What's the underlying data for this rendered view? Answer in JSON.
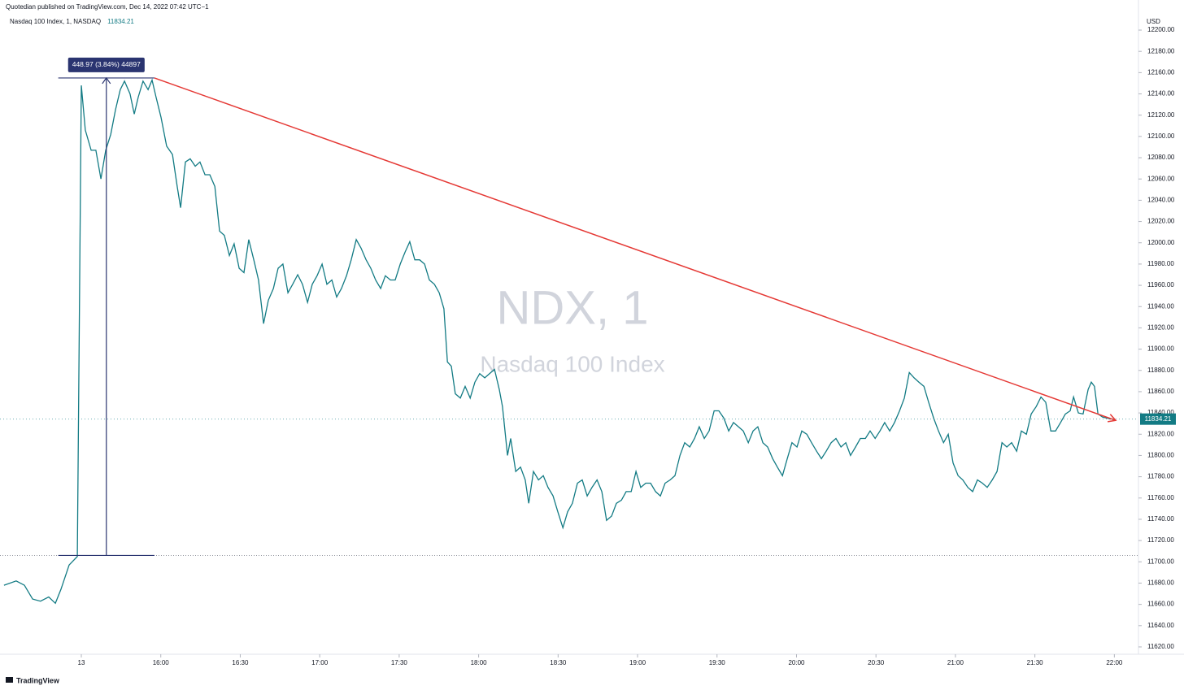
{
  "chart_data": {
    "type": "line",
    "title": "Quotedian published on TradingView.com, Dec 14, 2022 07:42 UTC−1",
    "watermark": [
      "NDX, 1",
      "Nasdaq 100 Index"
    ],
    "y_axis_label": "USD",
    "footer": "TradingView",
    "last_price": 11834.21,
    "xlim": [
      899.3,
      1329.1
    ],
    "ylim": [
      11613.1,
      12228.3
    ],
    "xticks": [
      {
        "value": 930,
        "label": "13"
      },
      {
        "value": 960,
        "label": "16:00"
      },
      {
        "value": 990,
        "label": "16:30"
      },
      {
        "value": 1020,
        "label": "17:00"
      },
      {
        "value": 1050,
        "label": "17:30"
      },
      {
        "value": 1080,
        "label": "18:00"
      },
      {
        "value": 1110,
        "label": "18:30"
      },
      {
        "value": 1140,
        "label": "19:00"
      },
      {
        "value": 1170,
        "label": "19:30"
      },
      {
        "value": 1200,
        "label": "20:00"
      },
      {
        "value": 1230,
        "label": "20:30"
      },
      {
        "value": 1260,
        "label": "21:00"
      },
      {
        "value": 1290,
        "label": "21:30"
      },
      {
        "value": 1320,
        "label": "22:00"
      }
    ],
    "yticks": [
      {
        "value": 11620,
        "label": "11620.00"
      },
      {
        "value": 11640,
        "label": "11640.00"
      },
      {
        "value": 11660,
        "label": "11660.00"
      },
      {
        "value": 11680,
        "label": "11680.00"
      },
      {
        "value": 11700,
        "label": "11700.00"
      },
      {
        "value": 11720,
        "label": "11720.00"
      },
      {
        "value": 11740,
        "label": "11740.00"
      },
      {
        "value": 11760,
        "label": "11760.00"
      },
      {
        "value": 11780,
        "label": "11780.00"
      },
      {
        "value": 11800,
        "label": "11800.00"
      },
      {
        "value": 11820,
        "label": "11820.00"
      },
      {
        "value": 11840,
        "label": "11840.00"
      },
      {
        "value": 11860,
        "label": "11860.00"
      },
      {
        "value": 11880,
        "label": "11880.00"
      },
      {
        "value": 11900,
        "label": "11900.00"
      },
      {
        "value": 11920,
        "label": "11920.00"
      },
      {
        "value": 11940,
        "label": "11940.00"
      },
      {
        "value": 11960,
        "label": "11960.00"
      },
      {
        "value": 11980,
        "label": "11980.00"
      },
      {
        "value": 12000,
        "label": "12000.00"
      },
      {
        "value": 12020,
        "label": "12020.00"
      },
      {
        "value": 12040,
        "label": "12040.00"
      },
      {
        "value": 12060,
        "label": "12060.00"
      },
      {
        "value": 12080,
        "label": "12080.00"
      },
      {
        "value": 12100,
        "label": "12100.00"
      },
      {
        "value": 12120,
        "label": "12120.00"
      },
      {
        "value": 12140,
        "label": "12140.00"
      },
      {
        "value": 12160,
        "label": "12160.00"
      },
      {
        "value": 12180,
        "label": "12180.00"
      },
      {
        "value": 12200,
        "label": "12200.00"
      }
    ],
    "reference_line": 11706,
    "measure": {
      "label": "448.97 (3.84%) 44897",
      "x": [
        921.3,
        957.6
      ],
      "y": [
        11706,
        12155
      ],
      "color": "#2a3470"
    },
    "trendline": {
      "color": "#e53935",
      "x": [
        957.6,
        1320.5
      ],
      "y": [
        12155,
        11833
      ]
    },
    "x": [
      900.8,
      905.4,
      908.5,
      911.6,
      914.6,
      917.7,
      920.2,
      922.3,
      925.4,
      928.5,
      930,
      931.5,
      933.7,
      935.5,
      937.4,
      939.2,
      941.1,
      942.9,
      944.7,
      946.3,
      948.4,
      950.0,
      951.5,
      953.3,
      955.2,
      956.7,
      958.2,
      960.1,
      962.2,
      964.4,
      966.2,
      967.5,
      969.3,
      971.1,
      973.0,
      974.8,
      976.7,
      978.5,
      980.4,
      982.2,
      984.0,
      985.9,
      987.7,
      989.6,
      991.4,
      993.2,
      995.1,
      996.9,
      998.8,
      1000.6,
      1002.5,
      1004.3,
      1006.1,
      1008.0,
      1009.8,
      1011.7,
      1013.5,
      1015.4,
      1017.2,
      1019.0,
      1020.9,
      1022.7,
      1024.6,
      1026.4,
      1028.2,
      1030.1,
      1031.9,
      1033.8,
      1035.6,
      1037.5,
      1039.3,
      1041.1,
      1043.0,
      1044.8,
      1046.7,
      1048.5,
      1050.4,
      1052.2,
      1054.0,
      1055.9,
      1057.7,
      1059.6,
      1061.4,
      1063.3,
      1065.1,
      1066.9,
      1068.2,
      1069.7,
      1071.2,
      1073.1,
      1074.9,
      1076.8,
      1078.6,
      1080.4,
      1082.3,
      1084.1,
      1086.0,
      1087.8,
      1089.0,
      1090.9,
      1092.1,
      1094.0,
      1095.8,
      1097.6,
      1098.9,
      1100.7,
      1102.6,
      1104.4,
      1106.2,
      1108.1,
      1109.9,
      1111.8,
      1113.6,
      1115.4,
      1117.3,
      1119.1,
      1121.0,
      1122.8,
      1124.7,
      1126.5,
      1128.3,
      1130.2,
      1132.0,
      1133.9,
      1135.7,
      1137.6,
      1139.4,
      1141.2,
      1143.1,
      1144.9,
      1146.8,
      1148.6,
      1150.4,
      1152.3,
      1154.1,
      1156.0,
      1157.8,
      1159.7,
      1161.5,
      1163.3,
      1165.2,
      1167.0,
      1168.9,
      1170.7,
      1172.6,
      1174.4,
      1176.2,
      1178.1,
      1179.9,
      1181.8,
      1183.6,
      1185.4,
      1187.3,
      1189.1,
      1191.0,
      1192.8,
      1194.7,
      1196.5,
      1198.3,
      1200.2,
      1202.0,
      1203.9,
      1205.7,
      1207.6,
      1209.4,
      1211.2,
      1213.1,
      1214.9,
      1216.8,
      1218.6,
      1220.4,
      1222.3,
      1224.1,
      1226.0,
      1227.8,
      1229.7,
      1231.5,
      1233.3,
      1235.2,
      1237.0,
      1238.9,
      1240.7,
      1242.6,
      1244.4,
      1246.2,
      1248.1,
      1249.9,
      1251.8,
      1253.6,
      1255.5,
      1257.3,
      1259.1,
      1261.0,
      1262.8,
      1264.7,
      1266.5,
      1268.3,
      1270.2,
      1272.0,
      1273.9,
      1275.7,
      1277.6,
      1279.4,
      1281.2,
      1283.1,
      1284.9,
      1286.8,
      1288.6,
      1290.5,
      1292.3,
      1294.1,
      1296.0,
      1297.8,
      1299.7,
      1301.5,
      1303.3,
      1304.6,
      1306.4,
      1308.2,
      1310.1,
      1311.3,
      1312.5,
      1313.8,
      1315.6,
      1317.5,
      1318.7
    ],
    "series": [
      {
        "name": "Nasdaq 100 Index, 1, NASDAQ",
        "color": "#137b84",
        "values": [
          11678,
          11682,
          11678,
          11665,
          11663,
          11667,
          11661,
          11674,
          11697,
          11705,
          12148,
          12106,
          12087,
          12087,
          12060,
          12087,
          12102,
          12125,
          12144,
          12152,
          12140,
          12121,
          12137,
          12152,
          12144,
          12153,
          12137,
          12118,
          12091,
          12083,
          12053,
          12033,
          12076,
          12079,
          12072,
          12076,
          12064,
          12064,
          12053,
          12011,
          12007,
          11988,
          11999,
          11976,
          11972,
          12003,
          11984,
          11965,
          11924,
          11946,
          11957,
          11976,
          11980,
          11953,
          11961,
          11970,
          11961,
          11944,
          11961,
          11969,
          11980,
          11961,
          11965,
          11949,
          11957,
          11969,
          11984,
          12003,
          11995,
          11984,
          11976,
          11965,
          11957,
          11969,
          11965,
          11965,
          11980,
          11991,
          12001,
          11984,
          11984,
          11980,
          11965,
          11961,
          11953,
          11938,
          11888,
          11884,
          11858,
          11854,
          11865,
          11854,
          11869,
          11877,
          11873,
          11877,
          11881,
          11862,
          11846,
          11800,
          11816,
          11785,
          11789,
          11777,
          11755,
          11785,
          11777,
          11781,
          11770,
          11762,
          11747,
          11732,
          11747,
          11755,
          11774,
          11777,
          11762,
          11770,
          11777,
          11766,
          11739,
          11743,
          11755,
          11758,
          11766,
          11766,
          11785,
          11770,
          11774,
          11774,
          11766,
          11762,
          11774,
          11777,
          11781,
          11800,
          11812,
          11808,
          11816,
          11827,
          11816,
          11823,
          11842,
          11842,
          11835,
          11823,
          11831,
          11827,
          11823,
          11812,
          11823,
          11827,
          11812,
          11808,
          11797,
          11789,
          11781,
          11797,
          11812,
          11808,
          11823,
          11820,
          11812,
          11804,
          11797,
          11804,
          11812,
          11816,
          11808,
          11812,
          11800,
          11808,
          11816,
          11816,
          11823,
          11816,
          11823,
          11831,
          11823,
          11831,
          11842,
          11854,
          11878,
          11873,
          11869,
          11865,
          11850,
          11835,
          11823,
          11812,
          11820,
          11793,
          11781,
          11777,
          11770,
          11766,
          11777,
          11774,
          11770,
          11777,
          11785,
          11812,
          11808,
          11812,
          11804,
          11823,
          11820,
          11839,
          11846,
          11855,
          11850,
          11823,
          11823,
          11831,
          11839,
          11842,
          11855,
          11840,
          11839,
          11862,
          11869,
          11865,
          11839,
          11836,
          11835,
          11834.21
        ]
      }
    ]
  }
}
